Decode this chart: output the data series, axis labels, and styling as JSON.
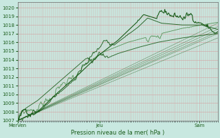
{
  "bg_color": "#c8e8e0",
  "grid_color_major": "#d4a0a0",
  "grid_color_minor": "#dbb8b8",
  "line_color_dark": "#1a5c1a",
  "line_color_mid": "#2d7a2d",
  "ylabel_ticks": [
    1007,
    1008,
    1009,
    1010,
    1011,
    1012,
    1013,
    1014,
    1015,
    1016,
    1017,
    1018,
    1019,
    1020
  ],
  "xtick_labels": [
    "MerVen",
    "Jeu",
    "Sam"
  ],
  "xtick_positions": [
    0.0,
    0.41,
    0.91
  ],
  "xlabel": "Pression niveau de la mer( hPa )",
  "ymin": 1007,
  "ymax": 1020.6,
  "xmin": 0.0,
  "xmax": 1.0
}
